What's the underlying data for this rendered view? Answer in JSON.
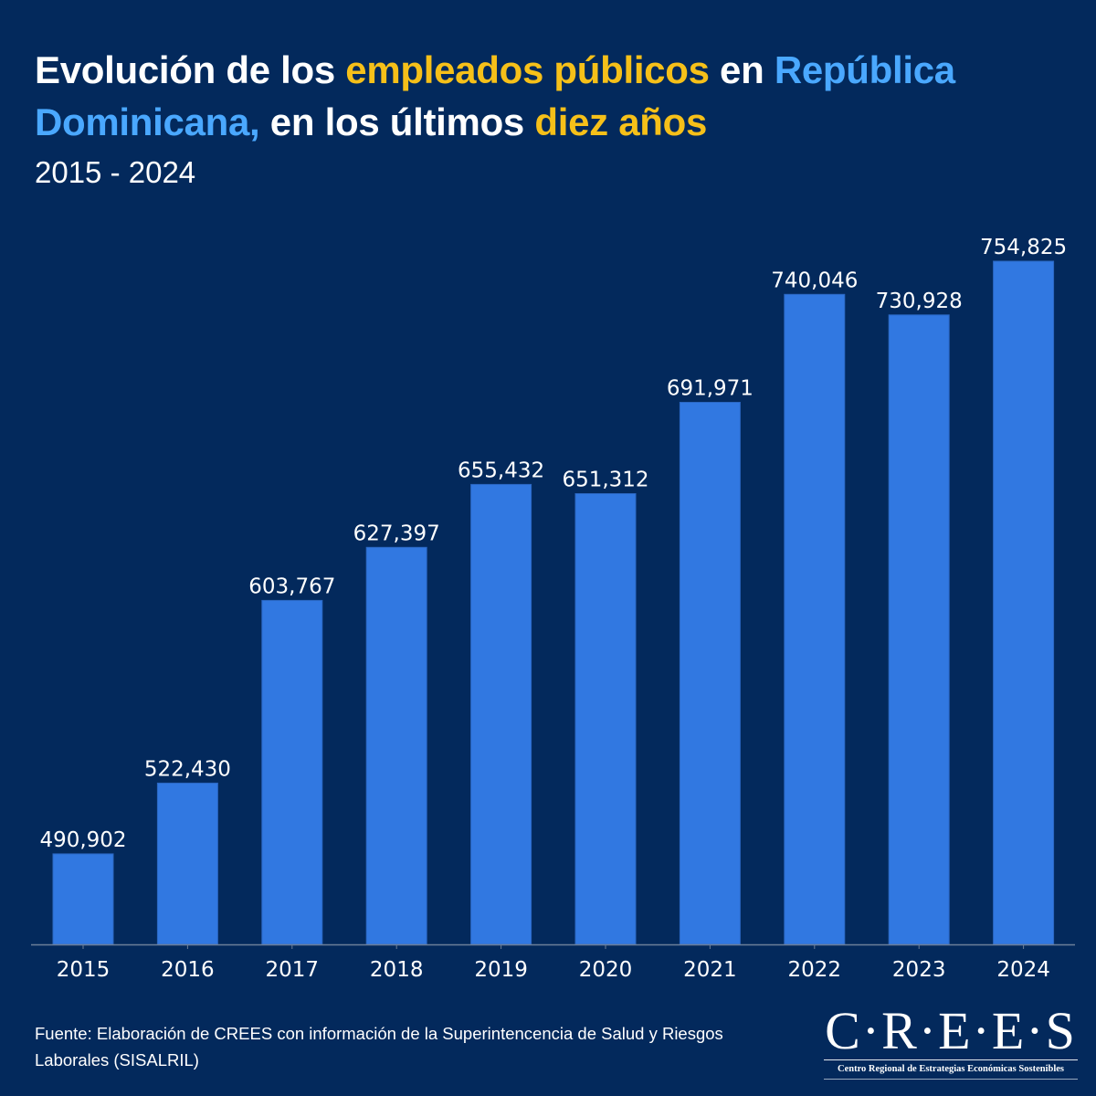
{
  "header": {
    "title_parts": [
      {
        "text": "Evolución de los ",
        "color": "white"
      },
      {
        "text": "empleados públicos",
        "color": "yellow"
      },
      {
        "text": " en ",
        "color": "white"
      },
      {
        "text": "República Dominicana,",
        "color": "blue"
      },
      {
        "text": " en los últimos ",
        "color": "white"
      },
      {
        "text": "diez años",
        "color": "yellow"
      }
    ],
    "subtitle": "2015 - 2024"
  },
  "colors": {
    "background": "#03295c",
    "bar": "#3178e1",
    "highlight_yellow": "#f6c019",
    "highlight_blue": "#4aa8ff",
    "text": "#ffffff"
  },
  "chart_data": {
    "type": "bar",
    "title": "Evolución de los empleados públicos en República Dominicana, en los últimos diez años",
    "subtitle": "2015 - 2024",
    "xlabel": "",
    "ylabel": "",
    "categories": [
      "2015",
      "2016",
      "2017",
      "2018",
      "2019",
      "2020",
      "2021",
      "2022",
      "2023",
      "2024"
    ],
    "values": [
      490902,
      522430,
      603767,
      627397,
      655432,
      651312,
      691971,
      740046,
      730928,
      754825
    ],
    "value_labels": [
      "490,902",
      "522,430",
      "603,767",
      "627,397",
      "655,432",
      "651,312",
      "691,971",
      "740,046",
      "730,928",
      "754,825"
    ],
    "ylim": [
      450600,
      760000
    ],
    "grid": false,
    "legend": "none"
  },
  "footer": {
    "source": "Fuente: Elaboración de CREES con información de la Superintencencia de Salud y Riesgos Laborales (SISALRIL)",
    "logo_name": "C·R·E·E·S",
    "logo_tagline": "Centro Regional de Estrategias Económicas Sostenibles"
  }
}
